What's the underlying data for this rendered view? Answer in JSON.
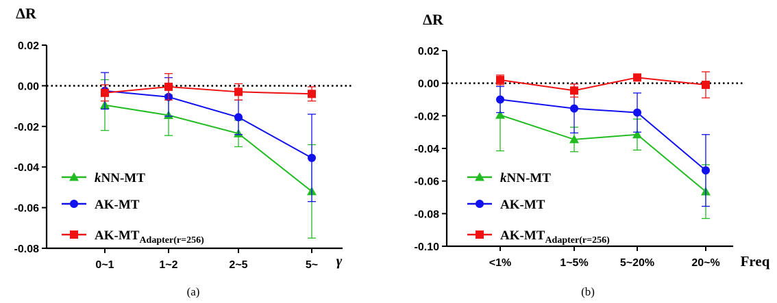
{
  "chart_data": [
    {
      "type": "line",
      "caption": "(a)",
      "ylabel": "ΔR",
      "xlabel": "γ",
      "categories": [
        "0~1",
        "1~2",
        "2~5",
        "5~"
      ],
      "ylim": [
        -0.08,
        0.02
      ],
      "yticks": [
        "0.02",
        "0.00",
        "-0.02",
        "-0.04",
        "-0.06",
        "-0.08"
      ],
      "ytick_values": [
        0.02,
        0.0,
        -0.02,
        -0.04,
        -0.06,
        -0.08
      ],
      "reference_line": 0.0,
      "grid": false,
      "legend_position": "bottom-left",
      "series": [
        {
          "name": "kNN-MT",
          "name_italic": "k",
          "name_rest": "NN-MT",
          "color": "#22bb22",
          "marker": "triangle",
          "values": [
            -0.0095,
            -0.0145,
            -0.0235,
            -0.052
          ],
          "err": [
            0.0125,
            0.01,
            0.0065,
            0.023
          ]
        },
        {
          "name": "AK-MT",
          "name_main": "AK-MT",
          "color": "#1111ee",
          "marker": "circle",
          "values": [
            -0.0025,
            -0.0055,
            -0.0155,
            -0.0355
          ],
          "err": [
            0.009,
            0.0095,
            0.0085,
            0.0215
          ]
        },
        {
          "name": "AK-MTAdapter(r=256)",
          "name_main": "AK-MT",
          "name_sub": "Adapter(r=256)",
          "color": "#ee1111",
          "marker": "square",
          "values": [
            -0.0035,
            -0.0005,
            -0.003,
            -0.004
          ],
          "err": [
            0.004,
            0.0065,
            0.004,
            0.0035
          ]
        }
      ]
    },
    {
      "type": "line",
      "caption": "(b)",
      "ylabel": "ΔR",
      "xlabel": "Freq",
      "categories": [
        "<1%",
        "1~5%",
        "5~20%",
        "20~%"
      ],
      "ylim": [
        -0.1,
        0.02
      ],
      "yticks": [
        "0.02",
        "0.00",
        "-0.02",
        "-0.04",
        "-0.06",
        "-0.08",
        "-0.10"
      ],
      "ytick_values": [
        0.02,
        0.0,
        -0.02,
        -0.04,
        -0.06,
        -0.08,
        -0.1
      ],
      "reference_line": 0.0,
      "grid": false,
      "legend_position": "bottom-left",
      "series": [
        {
          "name": "kNN-MT",
          "name_italic": "k",
          "name_rest": "NN-MT",
          "color": "#22bb22",
          "marker": "triangle",
          "values": [
            -0.0195,
            -0.0345,
            -0.0315,
            -0.0665
          ],
          "err": [
            0.022,
            0.0075,
            0.0095,
            0.0165
          ]
        },
        {
          "name": "AK-MT",
          "name_main": "AK-MT",
          "color": "#1111ee",
          "marker": "circle",
          "values": [
            -0.01,
            -0.0155,
            -0.018,
            -0.0535
          ],
          "err": [
            0.008,
            0.015,
            0.012,
            0.022
          ]
        },
        {
          "name": "AK-MTAdapter(r=256)",
          "name_main": "AK-MT",
          "name_sub": "Adapter(r=256)",
          "color": "#ee1111",
          "marker": "square",
          "values": [
            0.002,
            -0.0045,
            0.0035,
            -0.001
          ],
          "err": [
            0.003,
            0.004,
            0.0015,
            0.008
          ]
        }
      ]
    }
  ]
}
